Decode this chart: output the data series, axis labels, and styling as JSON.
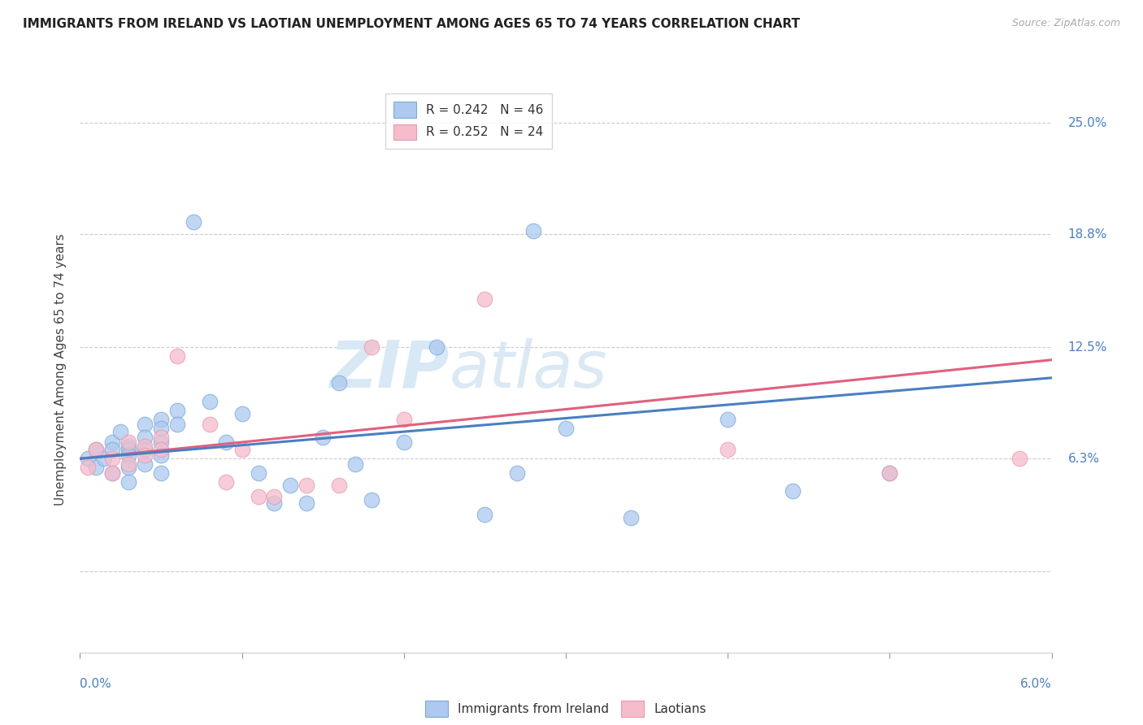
{
  "title": "IMMIGRANTS FROM IRELAND VS LAOTIAN UNEMPLOYMENT AMONG AGES 65 TO 74 YEARS CORRELATION CHART",
  "source": "Source: ZipAtlas.com",
  "ylabel_label": "Unemployment Among Ages 65 to 74 years",
  "ytick_labels": [
    "6.3%",
    "12.5%",
    "18.8%",
    "25.0%"
  ],
  "ytick_values": [
    0.063,
    0.125,
    0.188,
    0.25
  ],
  "xmin": 0.0,
  "xmax": 0.06,
  "ymin": -0.045,
  "ymax": 0.27,
  "series1_name": "Immigrants from Ireland",
  "series1_color": "#adc9ef",
  "series1_edge_color": "#7aaad8",
  "series1_line_color": "#4a7fc1",
  "series1_R": 0.242,
  "series1_N": 46,
  "series2_name": "Laotians",
  "series2_color": "#f5bccb",
  "series2_edge_color": "#e899b0",
  "series2_line_color": "#e0607e",
  "series2_R": 0.252,
  "series2_N": 24,
  "watermark_zip": "ZIP",
  "watermark_atlas": "atlas",
  "scatter1_x": [
    0.0005,
    0.001,
    0.001,
    0.0015,
    0.002,
    0.002,
    0.002,
    0.0025,
    0.003,
    0.003,
    0.003,
    0.003,
    0.003,
    0.004,
    0.004,
    0.004,
    0.004,
    0.005,
    0.005,
    0.005,
    0.005,
    0.005,
    0.006,
    0.006,
    0.007,
    0.008,
    0.009,
    0.01,
    0.011,
    0.012,
    0.013,
    0.014,
    0.015,
    0.016,
    0.017,
    0.018,
    0.02,
    0.022,
    0.025,
    0.027,
    0.028,
    0.03,
    0.034,
    0.04,
    0.044,
    0.05
  ],
  "scatter1_y": [
    0.063,
    0.058,
    0.068,
    0.063,
    0.072,
    0.068,
    0.055,
    0.078,
    0.07,
    0.068,
    0.065,
    0.058,
    0.05,
    0.082,
    0.075,
    0.068,
    0.06,
    0.085,
    0.08,
    0.072,
    0.065,
    0.055,
    0.09,
    0.082,
    0.195,
    0.095,
    0.072,
    0.088,
    0.055,
    0.038,
    0.048,
    0.038,
    0.075,
    0.105,
    0.06,
    0.04,
    0.072,
    0.125,
    0.032,
    0.055,
    0.19,
    0.08,
    0.03,
    0.085,
    0.045,
    0.055
  ],
  "scatter2_x": [
    0.0005,
    0.001,
    0.002,
    0.002,
    0.003,
    0.003,
    0.004,
    0.004,
    0.005,
    0.005,
    0.006,
    0.008,
    0.009,
    0.01,
    0.011,
    0.012,
    0.014,
    0.016,
    0.018,
    0.02,
    0.025,
    0.04,
    0.05,
    0.058
  ],
  "scatter2_y": [
    0.058,
    0.068,
    0.063,
    0.055,
    0.072,
    0.06,
    0.07,
    0.065,
    0.075,
    0.068,
    0.12,
    0.082,
    0.05,
    0.068,
    0.042,
    0.042,
    0.048,
    0.048,
    0.125,
    0.085,
    0.152,
    0.068,
    0.055,
    0.063
  ],
  "line1_x": [
    0.0,
    0.06
  ],
  "line1_y": [
    0.063,
    0.108
  ],
  "line2_x": [
    0.0,
    0.06
  ],
  "line2_y": [
    0.063,
    0.118
  ],
  "gridline_color": "#cccccc",
  "bottom_gridline_y": 0.0,
  "title_fontsize": 11,
  "source_fontsize": 9,
  "tick_fontsize": 11,
  "ylabel_fontsize": 11,
  "legend_fontsize": 11,
  "right_label_color": "#4a7fc1",
  "bottom_label_color": "#4a7fc1"
}
